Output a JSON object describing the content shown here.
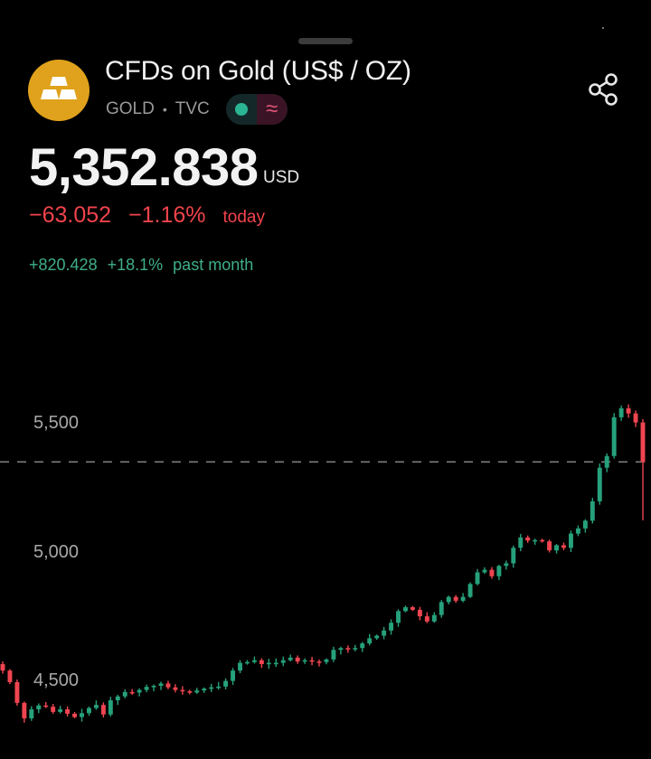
{
  "header": {
    "title": "CFDs on Gold (US$ / OZ)",
    "symbol": "GOLD",
    "separator": "•",
    "exchange": "TVC",
    "status_wave": "≈",
    "logo_icon": "gold-bars-icon",
    "share_icon": "share-icon"
  },
  "quote": {
    "price": "5,352.838",
    "currency": "USD",
    "change": "−63.052",
    "change_pct": "−1.16%",
    "change_period": "today",
    "month_change": "+820.428",
    "month_change_pct": "+18.1%",
    "month_period": "past month"
  },
  "colors": {
    "up": "#26a17b",
    "down": "#ef4550",
    "logo": "#e0a21c",
    "background": "#000000"
  },
  "chart_data": {
    "type": "candlestick",
    "y_ticks": [
      "5,500",
      "5,000",
      "4,500"
    ],
    "y_tick_values": [
      5500,
      5000,
      4500
    ],
    "ylim": [
      4350,
      5620
    ],
    "current_price_line": 5352.838,
    "closes": [
      4545,
      4500,
      4420,
      4360,
      4395,
      4410,
      4405,
      4385,
      4395,
      4378,
      4365,
      4380,
      4400,
      4412,
      4375,
      4430,
      4445,
      4462,
      4460,
      4470,
      4482,
      4486,
      4495,
      4480,
      4470,
      4465,
      4460,
      4468,
      4475,
      4480,
      4483,
      4505,
      4545,
      4575,
      4578,
      4585,
      4570,
      4575,
      4575,
      4585,
      4595,
      4580,
      4585,
      4580,
      4578,
      4588,
      4625,
      4632,
      4630,
      4632,
      4650,
      4670,
      4680,
      4700,
      4730,
      4775,
      4790,
      4780,
      4755,
      4735,
      4760,
      4810,
      4830,
      4815,
      4830,
      4880,
      4925,
      4935,
      4910,
      4950,
      4960,
      5020,
      5060,
      5048,
      5050,
      5045,
      5010,
      5030,
      5020,
      5075,
      5095,
      5125,
      5200,
      5330,
      5375,
      5525,
      5560,
      5540,
      5505,
      5352
    ]
  }
}
